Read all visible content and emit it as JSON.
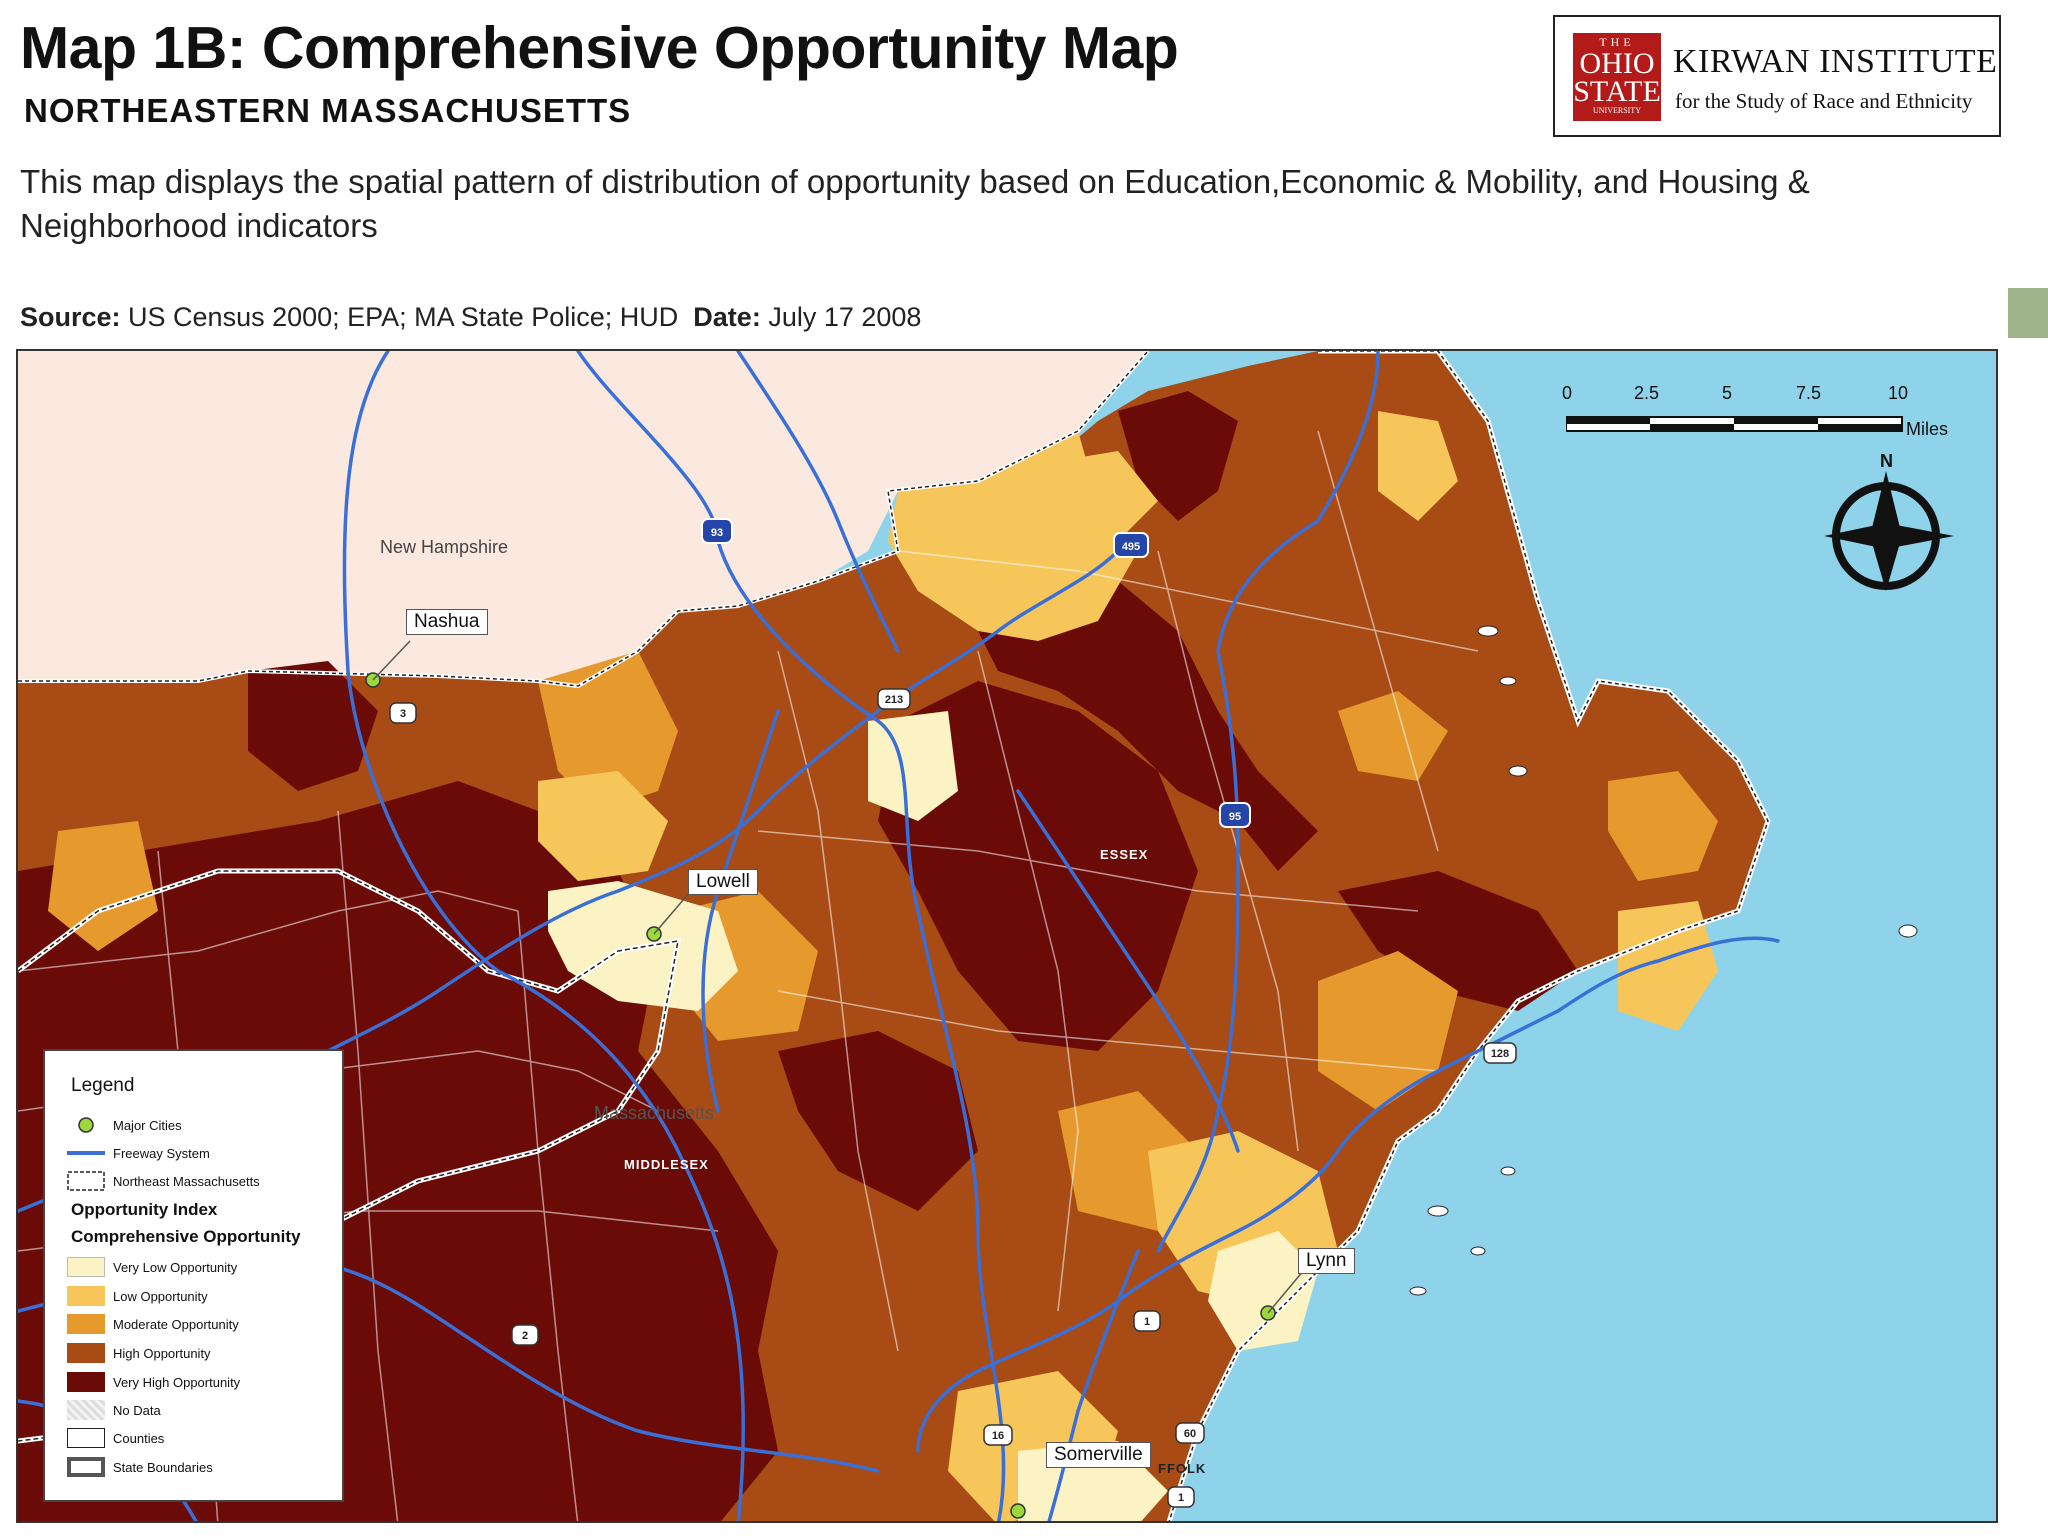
{
  "header": {
    "title": "Map 1B: Comprehensive Opportunity Map",
    "subtitle": "NORTHEASTERN MASSACHUSETTS",
    "description": "This map displays the spatial pattern of distribution of opportunity based on Education,Economic & Mobility, and Housing & Neighborhood indicators",
    "source_label": "Source:",
    "source_text": " US Census 2000; EPA; MA State Police; HUD",
    "date_label": "Date:",
    "date_text": " July 17 2008"
  },
  "logo": {
    "seal_top": "THE",
    "seal_main1": "OHIO",
    "seal_main2": "STATE",
    "seal_bottom": "UNIVERSITY",
    "institute": "KIRWAN INSTITUTE",
    "institute_sub": "for the Study of Race and Ethnicity"
  },
  "scale": {
    "ticks": [
      "0",
      "2.5",
      "5",
      "7.5",
      "10"
    ],
    "unit": "Miles"
  },
  "compass": {
    "north": "N"
  },
  "map_labels": {
    "new_hampshire": "New Hampshire",
    "massachusetts": "Massachusetts",
    "essex": "ESSEX",
    "middlesex": "MIDDLESEX",
    "suffolk": "FFOLK"
  },
  "cities": {
    "nashua": "Nashua",
    "lowell": "Lowell",
    "lynn": "Lynn",
    "somerville": "Somerville"
  },
  "routes": [
    "93",
    "495",
    "213",
    "3",
    "95",
    "128",
    "2",
    "1",
    "60",
    "16",
    "1"
  ],
  "legend": {
    "title": "Legend",
    "major_cities": "Major Cities",
    "freeway": "Freeway System",
    "northeast_ma": "Northeast Massachusetts",
    "index_title": "Opportunity Index",
    "index_sub": "Comprehensive Opportunity",
    "classes": [
      {
        "label": "Very Low Opportunity",
        "color": "#fbf3c4"
      },
      {
        "label": "Low Opportunity",
        "color": "#f6c65b"
      },
      {
        "label": "Moderate Opportunity",
        "color": "#e69a2e"
      },
      {
        "label": "High Opportunity",
        "color": "#a84b14"
      },
      {
        "label": "Very High Opportunity",
        "color": "#6b0b07"
      }
    ],
    "no_data": "No Data",
    "counties": "Counties",
    "state_boundaries": "State Boundaries"
  },
  "colors": {
    "water": "#8fd3ea",
    "new_hampshire": "#fbe9e0",
    "freeway": "#3a6fd8",
    "city_dot": "#9bd83a"
  }
}
